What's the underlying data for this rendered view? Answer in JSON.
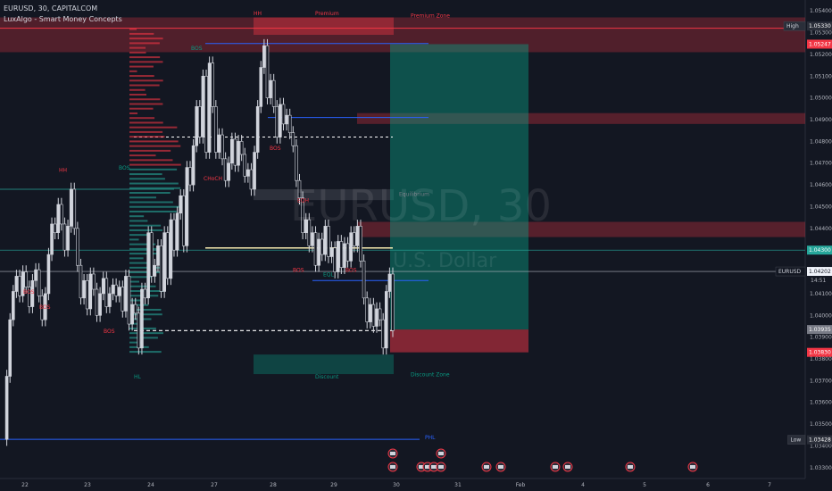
{
  "header": {
    "symbol_line": "EURUSD, 30, CAPITALCOM",
    "indicator_line": "LuxAlgo - Smart Money Concepts"
  },
  "watermark": {
    "symbol": "EURUSD, 30",
    "currency": "U.S. Dollar"
  },
  "colors": {
    "background": "#131722",
    "bull_candle": "#d1d4dc",
    "bear_candle": "#d1d4dc",
    "premium_zone": "#f23645",
    "discount_zone": "#089981",
    "bos_bull": "#089981",
    "bos_bear": "#f23645",
    "structure_line": "#2962ff",
    "equilibrium": "#787b86",
    "yellow_level": "#f7ecb1"
  },
  "chart_data": {
    "type": "candlestick",
    "ylim": [
      1.0325,
      1.0545
    ],
    "y_ticks": [
      "1.05400",
      "1.05300",
      "1.05200",
      "1.05100",
      "1.05000",
      "1.04900",
      "1.04800",
      "1.04700",
      "1.04600",
      "1.04500",
      "1.04400",
      "1.04300",
      "1.04200",
      "1.04100",
      "1.04000",
      "1.03900",
      "1.03800",
      "1.03700",
      "1.03600",
      "1.03500",
      "1.03400",
      "1.03300"
    ],
    "x_ticks": [
      "22",
      "23",
      "24",
      "27",
      "28",
      "29",
      "30",
      "31",
      "Feb",
      "4",
      "5",
      "6",
      "7"
    ],
    "price_markers": [
      {
        "label": "High",
        "value": "1.05330",
        "color": "#2a2e39"
      },
      {
        "label": "",
        "value": "1.05247",
        "color": "#f23645"
      },
      {
        "label": "",
        "value": "1.04300",
        "color": "#26a69a"
      },
      {
        "label": "EURUSD",
        "value": "1.04202",
        "sub": "14:51",
        "color": "#f0f3fa"
      },
      {
        "label": "",
        "value": "1.03935",
        "color": "#787b86"
      },
      {
        "label": "",
        "value": "1.03830",
        "color": "#f23645"
      },
      {
        "label": "Low",
        "value": "1.03428",
        "color": "#2a2e39"
      }
    ],
    "path": [
      1.0343,
      1.0372,
      1.0398,
      1.0411,
      1.0418,
      1.0409,
      1.042,
      1.0413,
      1.0404,
      1.0416,
      1.0421,
      1.0409,
      1.0398,
      1.041,
      1.0428,
      1.0442,
      1.0438,
      1.0451,
      1.0442,
      1.043,
      1.0441,
      1.0458,
      1.044,
      1.0423,
      1.0408,
      1.0416,
      1.0403,
      1.0419,
      1.0412,
      1.04,
      1.041,
      1.0417,
      1.0404,
      1.041,
      1.0414,
      1.0409,
      1.0413,
      1.0402,
      1.0418,
      1.0396,
      1.0405,
      1.0401,
      1.0385,
      1.0412,
      1.0408,
      1.0438,
      1.0418,
      1.0423,
      1.0432,
      1.0411,
      1.0438,
      1.0417,
      1.0444,
      1.043,
      1.0447,
      1.0455,
      1.0432,
      1.0468,
      1.046,
      1.0478,
      1.0496,
      1.0482,
      1.051,
      1.0475,
      1.0516,
      1.0496,
      1.0475,
      1.0483,
      1.0472,
      1.0462,
      1.047,
      1.0481,
      1.0469,
      1.048,
      1.0474,
      1.0464,
      1.0467,
      1.0458,
      1.0475,
      1.0496,
      1.0514,
      1.0524,
      1.05,
      1.0508,
      1.0496,
      1.0482,
      1.0497,
      1.0488,
      1.0492,
      1.0484,
      1.0478,
      1.0462,
      1.0454,
      1.0438,
      1.0444,
      1.0432,
      1.0438,
      1.0423,
      1.0435,
      1.0428,
      1.0441,
      1.0427,
      1.0431,
      1.042,
      1.0434,
      1.0422,
      1.0433,
      1.0425,
      1.0438,
      1.0432,
      1.0441,
      1.0425,
      1.0408,
      1.0397,
      1.0405,
      1.0395,
      1.0403,
      1.0398,
      1.0385,
      1.0411,
      1.0419,
      1.0393
    ],
    "x_range_idx": [
      0,
      118
    ],
    "zones": [
      {
        "name": "premium",
        "y1": 1.0537,
        "y2": 1.0521
      },
      {
        "name": "discount",
        "y1": 1.0382,
        "y2": 1.0373
      }
    ],
    "labels": [
      {
        "text": "HH",
        "x": 284,
        "price": 1.0538,
        "color": "#f23645"
      },
      {
        "text": "Premium",
        "x": 353,
        "price": 1.0538,
        "color": "#f23645"
      },
      {
        "text": "Premium Zone",
        "x": 460,
        "price": 1.0537,
        "color": "#f23645"
      },
      {
        "text": "BOS",
        "x": 214,
        "price": 1.0522,
        "color": "#089981"
      },
      {
        "text": "BOS",
        "x": 302,
        "price": 1.0476,
        "color": "#f23645"
      },
      {
        "text": "HH",
        "x": 66,
        "price": 1.0466,
        "color": "#f23645"
      },
      {
        "text": "BOS",
        "x": 133,
        "price": 1.0467,
        "color": "#089981"
      },
      {
        "text": "CHoCH",
        "x": 228,
        "price": 1.0462,
        "color": "#f23645"
      },
      {
        "text": "EQH",
        "x": 333,
        "price": 1.0452,
        "color": "#f23645"
      },
      {
        "text": "Equilibrium",
        "x": 447,
        "price": 1.0455,
        "color": "#787b86"
      },
      {
        "text": "BOS",
        "x": 328,
        "price": 1.042,
        "color": "#f23645"
      },
      {
        "text": "EQL",
        "x": 362,
        "price": 1.0418,
        "color": "#089981"
      },
      {
        "text": "BOS",
        "x": 387,
        "price": 1.042,
        "color": "#f23645"
      },
      {
        "text": "BOS",
        "x": 26,
        "price": 1.041,
        "color": "#f23645"
      },
      {
        "text": "BOS",
        "x": 44,
        "price": 1.0403,
        "color": "#f23645"
      },
      {
        "text": "BOS",
        "x": 116,
        "price": 1.0392,
        "color": "#f23645"
      },
      {
        "text": "HL",
        "x": 150,
        "price": 1.0371,
        "color": "#089981"
      },
      {
        "text": "Discount",
        "x": 353,
        "price": 1.0371,
        "color": "#089981"
      },
      {
        "text": "Discount Zone",
        "x": 460,
        "price": 1.0372,
        "color": "#089981"
      },
      {
        "text": "PHL",
        "x": 476,
        "price": 1.0343,
        "color": "#2962ff"
      }
    ]
  }
}
